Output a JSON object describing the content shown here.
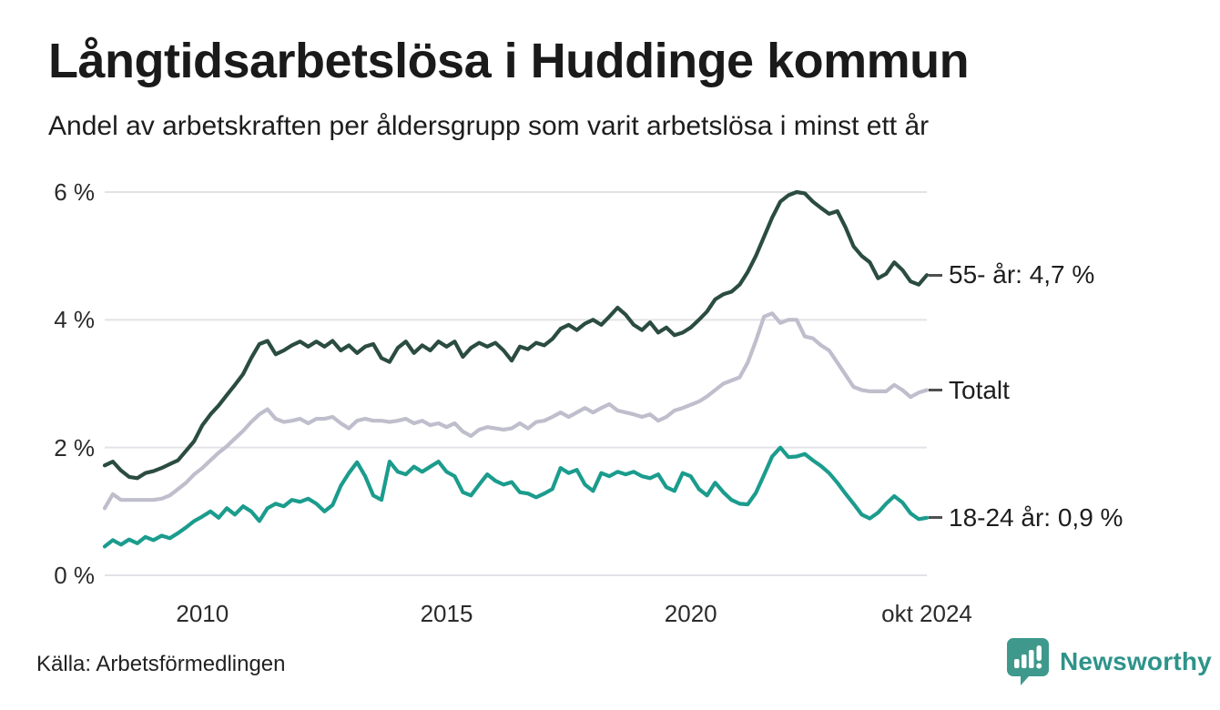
{
  "header": {
    "title": "Långtidsarbetslösa i Huddinge kommun",
    "subtitle": "Andel av arbetskraften per åldersgrupp som varit arbetslösa i minst ett år"
  },
  "footer": {
    "source": "Källa: Arbetsförmedlingen",
    "brand": "Newsworthy"
  },
  "colors": {
    "title_text": "#1a1a1a",
    "body_text": "#1d1d1d",
    "tick_text": "#2b2b2b",
    "gridline": "#e3e2e7",
    "label_dash": "#4f4f4f",
    "series_55": "#2B4C40",
    "series_totalt": "#BFBECC",
    "series_18_24": "#1B9C8D",
    "brand_icon": "#3E998C",
    "brand_text": "#2E938A"
  },
  "chart_data": {
    "type": "line",
    "title": "Långtidsarbetslösa i Huddinge kommun",
    "subtitle": "Andel av arbetskraften per åldersgrupp som varit arbetslösa i minst ett år",
    "unit": "% av arbetskraften",
    "grid": "horizontal",
    "legend_position": "right-of-line-end",
    "xlim": [
      2008.0,
      2024.8333
    ],
    "ylim": [
      0,
      6.3
    ],
    "x_start": 2008.0,
    "x_step_years": 0.1666667,
    "x_ticks": [
      {
        "label": "2010",
        "t": 2010
      },
      {
        "label": "2015",
        "t": 2015
      },
      {
        "label": "2020",
        "t": 2020
      },
      {
        "label": "okt 2024",
        "t": 2024.8333
      }
    ],
    "y_ticks": [
      {
        "label": "0 %",
        "v": 0
      },
      {
        "label": "2 %",
        "v": 2
      },
      {
        "label": "4 %",
        "v": 4
      },
      {
        "label": "6 %",
        "v": 6
      }
    ],
    "series": [
      {
        "name": "55- år",
        "end_label": "55- år: 4,7 %",
        "end_value": 4.7,
        "color": "#2B4C40",
        "values": [
          1.72,
          1.78,
          1.64,
          1.54,
          1.52,
          1.6,
          1.63,
          1.68,
          1.74,
          1.8,
          1.95,
          2.1,
          2.35,
          2.52,
          2.66,
          2.82,
          2.98,
          3.15,
          3.4,
          3.62,
          3.67,
          3.46,
          3.52,
          3.6,
          3.66,
          3.58,
          3.66,
          3.58,
          3.67,
          3.52,
          3.6,
          3.48,
          3.58,
          3.62,
          3.4,
          3.34,
          3.56,
          3.66,
          3.48,
          3.6,
          3.52,
          3.66,
          3.58,
          3.66,
          3.42,
          3.56,
          3.64,
          3.58,
          3.64,
          3.52,
          3.36,
          3.58,
          3.54,
          3.64,
          3.6,
          3.7,
          3.86,
          3.92,
          3.84,
          3.94,
          4.0,
          3.92,
          4.05,
          4.19,
          4.08,
          3.92,
          3.84,
          3.96,
          3.8,
          3.88,
          3.76,
          3.8,
          3.88,
          4.0,
          4.13,
          4.32,
          4.4,
          4.44,
          4.55,
          4.75,
          5.0,
          5.3,
          5.6,
          5.85,
          5.95,
          6.0,
          5.98,
          5.85,
          5.75,
          5.66,
          5.7,
          5.45,
          5.15,
          5.0,
          4.9,
          4.65,
          4.72,
          4.9,
          4.78,
          4.6,
          4.55,
          4.7
        ]
      },
      {
        "name": "Totalt",
        "end_label": "Totalt",
        "end_value": 2.9,
        "color": "#BFBECC",
        "values": [
          1.05,
          1.27,
          1.18,
          1.18,
          1.18,
          1.18,
          1.18,
          1.2,
          1.25,
          1.35,
          1.45,
          1.58,
          1.68,
          1.8,
          1.92,
          2.02,
          2.14,
          2.26,
          2.4,
          2.52,
          2.6,
          2.45,
          2.4,
          2.42,
          2.45,
          2.38,
          2.45,
          2.45,
          2.48,
          2.38,
          2.3,
          2.42,
          2.45,
          2.42,
          2.42,
          2.4,
          2.42,
          2.45,
          2.38,
          2.42,
          2.35,
          2.38,
          2.32,
          2.38,
          2.25,
          2.18,
          2.28,
          2.32,
          2.3,
          2.28,
          2.3,
          2.38,
          2.3,
          2.4,
          2.42,
          2.48,
          2.55,
          2.48,
          2.55,
          2.62,
          2.55,
          2.62,
          2.68,
          2.58,
          2.55,
          2.52,
          2.48,
          2.52,
          2.42,
          2.48,
          2.58,
          2.62,
          2.67,
          2.72,
          2.8,
          2.9,
          3.0,
          3.05,
          3.1,
          3.33,
          3.67,
          4.05,
          4.1,
          3.95,
          4.0,
          4.0,
          3.74,
          3.71,
          3.6,
          3.52,
          3.33,
          3.14,
          2.95,
          2.9,
          2.88,
          2.88,
          2.88,
          2.98,
          2.9,
          2.79,
          2.86,
          2.9
        ]
      },
      {
        "name": "18-24 år",
        "end_label": "18-24 år: 0,9 %",
        "end_value": 0.9,
        "color": "#1B9C8D",
        "values": [
          0.45,
          0.55,
          0.48,
          0.56,
          0.5,
          0.6,
          0.55,
          0.62,
          0.58,
          0.66,
          0.75,
          0.85,
          0.92,
          1.0,
          0.9,
          1.05,
          0.95,
          1.08,
          1.0,
          0.85,
          1.05,
          1.12,
          1.08,
          1.18,
          1.15,
          1.2,
          1.12,
          1.0,
          1.1,
          1.4,
          1.6,
          1.77,
          1.55,
          1.25,
          1.18,
          1.78,
          1.62,
          1.58,
          1.7,
          1.62,
          1.7,
          1.78,
          1.62,
          1.55,
          1.3,
          1.25,
          1.42,
          1.58,
          1.48,
          1.42,
          1.46,
          1.3,
          1.28,
          1.22,
          1.28,
          1.35,
          1.68,
          1.6,
          1.65,
          1.42,
          1.32,
          1.6,
          1.55,
          1.62,
          1.58,
          1.62,
          1.55,
          1.52,
          1.58,
          1.38,
          1.32,
          1.6,
          1.55,
          1.35,
          1.25,
          1.45,
          1.3,
          1.18,
          1.12,
          1.11,
          1.29,
          1.57,
          1.86,
          2.0,
          1.85,
          1.86,
          1.9,
          1.8,
          1.71,
          1.6,
          1.45,
          1.28,
          1.12,
          0.95,
          0.89,
          0.98,
          1.12,
          1.24,
          1.14,
          0.97,
          0.88,
          0.9
        ]
      }
    ]
  }
}
